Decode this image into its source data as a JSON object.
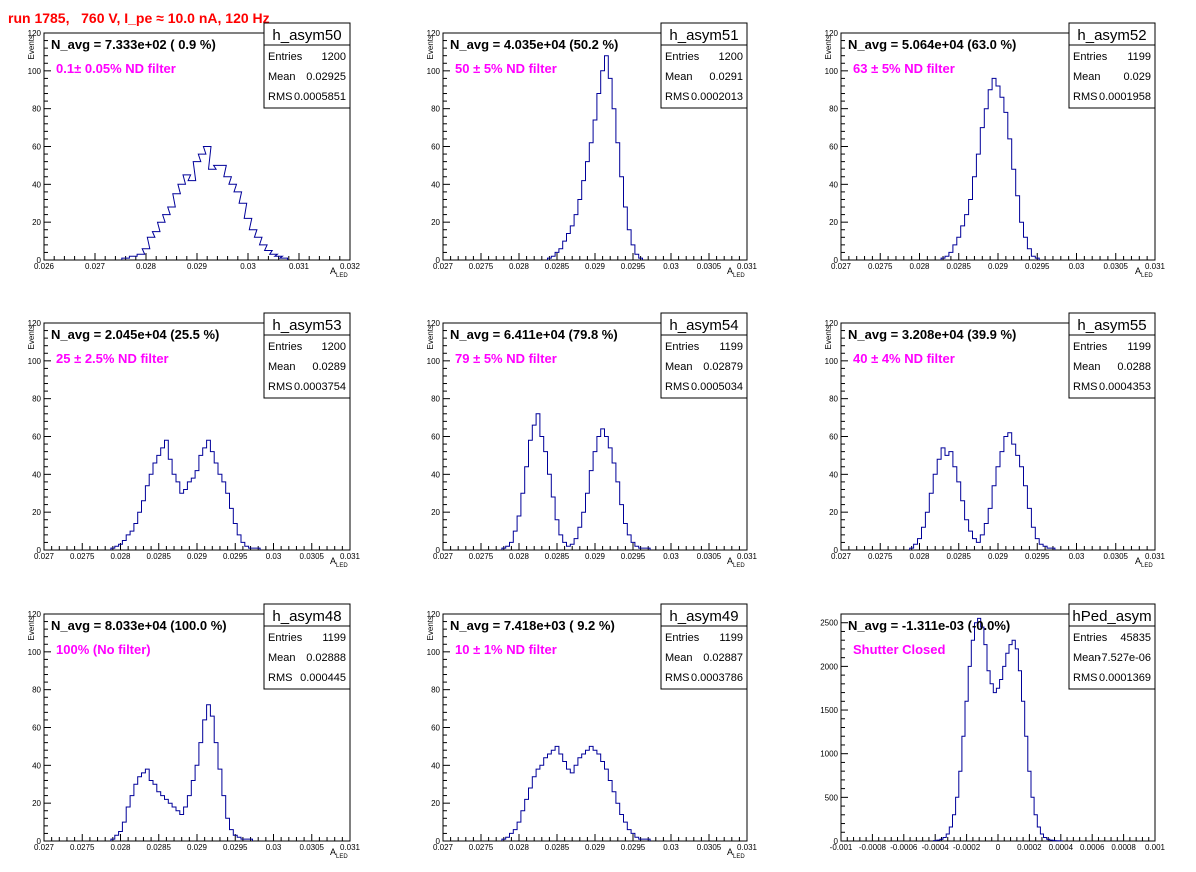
{
  "title": "run 1785,   760 V, I_pe ≈ 10.0 nA, 120 Hz",
  "colors": {
    "title": "#ff0000",
    "filter_label": "#ff00ff",
    "histogram": "#000099"
  },
  "stats_labels": {
    "entries": "Entries",
    "mean": "Mean",
    "rms": "RMS"
  },
  "chart_data": [
    {
      "type": "histogram",
      "name": "h_asym50",
      "navg": "N_avg = 7.333e+02 ( 0.9 %)",
      "filter": "0.1± 0.05% ND filter",
      "entries": "1200",
      "mean": "0.02925",
      "rms": "0.0005851",
      "ylabel": "Events",
      "xlabel": "A",
      "xlabel_sub": "LED",
      "xlim": [
        0.026,
        0.032
      ],
      "ylim": [
        0,
        120
      ],
      "xticks": [
        "0.026",
        "0.027",
        "0.028",
        "0.029",
        "0.03",
        "0.031",
        "0.032"
      ],
      "yticks": [
        "0",
        "20",
        "40",
        "60",
        "80",
        "100",
        "120"
      ],
      "x": [
        0.0276,
        0.02775,
        0.0279,
        0.028,
        0.0281,
        0.0282,
        0.0283,
        0.0284,
        0.0285,
        0.0286,
        0.0287,
        0.0288,
        0.0289,
        0.029,
        0.0291,
        0.0292,
        0.0293,
        0.0294,
        0.0295,
        0.0296,
        0.0297,
        0.0298,
        0.0299,
        0.03,
        0.0301,
        0.0302,
        0.0303,
        0.0304,
        0.0305,
        0.0306,
        0.0307
      ],
      "values": [
        1,
        2,
        3,
        6,
        12,
        15,
        20,
        24,
        28,
        35,
        40,
        45,
        42,
        52,
        56,
        60,
        48,
        50,
        50,
        44,
        40,
        36,
        30,
        22,
        16,
        12,
        8,
        5,
        3,
        2,
        1
      ]
    },
    {
      "type": "histogram",
      "name": "h_asym51",
      "navg": "N_avg = 4.035e+04 (50.2 %)",
      "filter": "50 ± 5% ND filter",
      "entries": "1200",
      "mean": "0.0291",
      "rms": "0.0002013",
      "ylabel": "Events",
      "xlabel": "A",
      "xlabel_sub": "LED",
      "xlim": [
        0.027,
        0.031
      ],
      "ylim": [
        0,
        120
      ],
      "xticks": [
        "0.027",
        "0.0275",
        "0.028",
        "0.0285",
        "0.029",
        "0.0295",
        "0.03",
        "0.0305",
        "0.031"
      ],
      "yticks": [
        "0",
        "20",
        "40",
        "60",
        "80",
        "100",
        "120"
      ],
      "x": [
        0.0284,
        0.02845,
        0.0285,
        0.02855,
        0.0286,
        0.02865,
        0.0287,
        0.02875,
        0.0288,
        0.02885,
        0.0289,
        0.02895,
        0.029,
        0.02905,
        0.0291,
        0.02915,
        0.0292,
        0.02925,
        0.0293,
        0.02935,
        0.0294,
        0.02945,
        0.0295,
        0.02955,
        0.0296
      ],
      "values": [
        1,
        2,
        4,
        6,
        10,
        14,
        18,
        24,
        32,
        42,
        52,
        62,
        74,
        88,
        100,
        108,
        96,
        80,
        62,
        44,
        28,
        16,
        8,
        3,
        1
      ]
    },
    {
      "type": "histogram",
      "name": "h_asym52",
      "navg": "N_avg = 5.064e+04 (63.0 %)",
      "filter": "63 ± 5% ND filter",
      "entries": "1199",
      "mean": "0.029",
      "rms": "0.0001958",
      "ylabel": "Events",
      "xlabel": "A",
      "xlabel_sub": "LED",
      "xlim": [
        0.027,
        0.031
      ],
      "ylim": [
        0,
        120
      ],
      "xticks": [
        "0.027",
        "0.0275",
        "0.028",
        "0.0285",
        "0.029",
        "0.0295",
        "0.03",
        "0.0305",
        "0.031"
      ],
      "yticks": [
        "0",
        "20",
        "40",
        "60",
        "80",
        "100",
        "120"
      ],
      "x": [
        0.0283,
        0.02835,
        0.0284,
        0.02845,
        0.0285,
        0.02855,
        0.0286,
        0.02865,
        0.0287,
        0.02875,
        0.0288,
        0.02885,
        0.0289,
        0.02895,
        0.029,
        0.02905,
        0.0291,
        0.02915,
        0.0292,
        0.02925,
        0.0293,
        0.02935,
        0.0294,
        0.02945,
        0.0295
      ],
      "values": [
        1,
        2,
        4,
        8,
        12,
        18,
        24,
        32,
        44,
        56,
        70,
        80,
        90,
        96,
        92,
        86,
        78,
        64,
        48,
        34,
        20,
        12,
        6,
        2,
        1
      ]
    },
    {
      "type": "histogram",
      "name": "h_asym53",
      "navg": "N_avg = 2.045e+04 (25.5 %)",
      "filter": "25 ± 2.5% ND filter",
      "entries": "1200",
      "mean": "0.0289",
      "rms": "0.0003754",
      "ylabel": "Events",
      "xlabel": "A",
      "xlabel_sub": "LED",
      "xlim": [
        0.027,
        0.031
      ],
      "ylim": [
        0,
        120
      ],
      "xticks": [
        "0.027",
        "0.0275",
        "0.028",
        "0.0285",
        "0.029",
        "0.0295",
        "0.03",
        "0.0305",
        "0.031"
      ],
      "yticks": [
        "0",
        "20",
        "40",
        "60",
        "80",
        "100",
        "120"
      ],
      "x": [
        0.0279,
        0.02795,
        0.028,
        0.02805,
        0.0281,
        0.02815,
        0.0282,
        0.02825,
        0.0283,
        0.02835,
        0.0284,
        0.02845,
        0.0285,
        0.02855,
        0.0286,
        0.02865,
        0.0287,
        0.02875,
        0.0288,
        0.02885,
        0.0289,
        0.02895,
        0.029,
        0.02905,
        0.0291,
        0.02915,
        0.0292,
        0.02925,
        0.0293,
        0.02935,
        0.0294,
        0.02945,
        0.0295,
        0.02955,
        0.0296,
        0.02965,
        0.0297,
        0.02975,
        0.0298
      ],
      "values": [
        1,
        2,
        3,
        5,
        8,
        10,
        14,
        20,
        26,
        34,
        40,
        46,
        50,
        54,
        58,
        48,
        40,
        36,
        30,
        32,
        36,
        38,
        42,
        50,
        54,
        58,
        52,
        46,
        40,
        36,
        30,
        22,
        14,
        8,
        4,
        2,
        1,
        1,
        1
      ]
    },
    {
      "type": "histogram",
      "name": "h_asym54",
      "navg": "N_avg = 6.411e+04 (79.8 %)",
      "filter": "79 ± 5% ND filter",
      "entries": "1199",
      "mean": "0.02879",
      "rms": "0.0005034",
      "ylabel": "Events",
      "xlabel": "A",
      "xlabel_sub": "LED",
      "xlim": [
        0.027,
        0.031
      ],
      "ylim": [
        0,
        120
      ],
      "xticks": [
        "0.027",
        "0.0275",
        "0.028",
        "0.0285",
        "0.029",
        "0.0295",
        "0.03",
        "0.0305",
        "0.031"
      ],
      "yticks": [
        "0",
        "20",
        "40",
        "60",
        "80",
        "100",
        "120"
      ],
      "x": [
        0.0278,
        0.02785,
        0.0279,
        0.02795,
        0.028,
        0.02805,
        0.0281,
        0.02815,
        0.0282,
        0.02825,
        0.0283,
        0.02835,
        0.0284,
        0.02845,
        0.0285,
        0.02855,
        0.0286,
        0.02865,
        0.0287,
        0.02875,
        0.0288,
        0.02885,
        0.0289,
        0.02895,
        0.029,
        0.02905,
        0.0291,
        0.02915,
        0.0292,
        0.02925,
        0.0293,
        0.02935,
        0.0294,
        0.02945,
        0.0295,
        0.02955,
        0.0296,
        0.02965,
        0.0297
      ],
      "values": [
        1,
        2,
        4,
        10,
        18,
        30,
        44,
        58,
        66,
        72,
        60,
        52,
        40,
        28,
        16,
        8,
        4,
        2,
        3,
        6,
        12,
        20,
        30,
        42,
        52,
        60,
        64,
        60,
        54,
        46,
        36,
        24,
        14,
        8,
        4,
        2,
        1,
        1,
        1
      ]
    },
    {
      "type": "histogram",
      "name": "h_asym55",
      "navg": "N_avg = 3.208e+04 (39.9 %)",
      "filter": "40 ± 4% ND filter",
      "entries": "1199",
      "mean": "0.0288",
      "rms": "0.0004353",
      "ylabel": "Events",
      "xlabel": "A",
      "xlabel_sub": "LED",
      "xlim": [
        0.027,
        0.031
      ],
      "ylim": [
        0,
        120
      ],
      "xticks": [
        "0.027",
        "0.0275",
        "0.028",
        "0.0285",
        "0.029",
        "0.0295",
        "0.03",
        "0.0305",
        "0.031"
      ],
      "yticks": [
        "0",
        "20",
        "40",
        "60",
        "80",
        "100",
        "120"
      ],
      "x": [
        0.0279,
        0.02795,
        0.028,
        0.02805,
        0.0281,
        0.02815,
        0.0282,
        0.02825,
        0.0283,
        0.02835,
        0.0284,
        0.02845,
        0.0285,
        0.02855,
        0.0286,
        0.02865,
        0.0287,
        0.02875,
        0.0288,
        0.02885,
        0.0289,
        0.02895,
        0.029,
        0.02905,
        0.0291,
        0.02915,
        0.0292,
        0.02925,
        0.0293,
        0.02935,
        0.0294,
        0.02945,
        0.0295,
        0.02955,
        0.0296,
        0.02965,
        0.0297
      ],
      "values": [
        1,
        3,
        6,
        12,
        20,
        30,
        40,
        48,
        54,
        50,
        52,
        44,
        36,
        26,
        16,
        10,
        6,
        4,
        8,
        14,
        22,
        34,
        44,
        52,
        60,
        62,
        56,
        50,
        44,
        34,
        22,
        12,
        6,
        3,
        2,
        1,
        1
      ]
    },
    {
      "type": "histogram",
      "name": "h_asym48",
      "navg": "N_avg = 8.033e+04 (100.0 %)",
      "filter": "100% (No filter)",
      "entries": "1199",
      "mean": "0.02888",
      "rms": "0.000445",
      "ylabel": "Events",
      "xlabel": "A",
      "xlabel_sub": "LED",
      "xlim": [
        0.027,
        0.031
      ],
      "ylim": [
        0,
        120
      ],
      "xticks": [
        "0.027",
        "0.0275",
        "0.028",
        "0.0285",
        "0.029",
        "0.0295",
        "0.03",
        "0.0305",
        "0.031"
      ],
      "yticks": [
        "0",
        "20",
        "40",
        "60",
        "80",
        "100",
        "120"
      ],
      "x": [
        0.0279,
        0.02795,
        0.028,
        0.02805,
        0.0281,
        0.02815,
        0.0282,
        0.02825,
        0.0283,
        0.02835,
        0.0284,
        0.02845,
        0.0285,
        0.02855,
        0.0286,
        0.02865,
        0.0287,
        0.02875,
        0.0288,
        0.02885,
        0.0289,
        0.02895,
        0.029,
        0.02905,
        0.0291,
        0.02915,
        0.0292,
        0.02925,
        0.0293,
        0.02935,
        0.0294,
        0.02945,
        0.0295,
        0.02955,
        0.0296,
        0.02965,
        0.0297
      ],
      "values": [
        1,
        3,
        5,
        10,
        18,
        24,
        30,
        34,
        36,
        38,
        32,
        30,
        26,
        24,
        22,
        20,
        18,
        16,
        14,
        18,
        24,
        32,
        40,
        52,
        64,
        72,
        66,
        52,
        38,
        24,
        12,
        6,
        3,
        2,
        1,
        1,
        1
      ]
    },
    {
      "type": "histogram",
      "name": "h_asym49",
      "navg": "N_avg = 7.418e+03 ( 9.2 %)",
      "filter": "10 ± 1% ND filter",
      "entries": "1199",
      "mean": "0.02887",
      "rms": "0.0003786",
      "ylabel": "Events",
      "xlabel": "A",
      "xlabel_sub": "LED",
      "xlim": [
        0.027,
        0.031
      ],
      "ylim": [
        0,
        120
      ],
      "xticks": [
        "0.027",
        "0.0275",
        "0.028",
        "0.0285",
        "0.029",
        "0.0295",
        "0.03",
        "0.0305",
        "0.031"
      ],
      "yticks": [
        "0",
        "20",
        "40",
        "60",
        "80",
        "100",
        "120"
      ],
      "x": [
        0.0278,
        0.02785,
        0.0279,
        0.02795,
        0.028,
        0.02805,
        0.0281,
        0.02815,
        0.0282,
        0.02825,
        0.0283,
        0.02835,
        0.0284,
        0.02845,
        0.0285,
        0.02855,
        0.0286,
        0.02865,
        0.0287,
        0.02875,
        0.0288,
        0.02885,
        0.0289,
        0.02895,
        0.029,
        0.02905,
        0.0291,
        0.02915,
        0.0292,
        0.02925,
        0.0293,
        0.02935,
        0.0294,
        0.02945,
        0.0295,
        0.02955,
        0.0296,
        0.02965,
        0.0297
      ],
      "values": [
        1,
        2,
        4,
        6,
        10,
        16,
        22,
        28,
        34,
        38,
        40,
        44,
        46,
        48,
        50,
        46,
        42,
        38,
        36,
        40,
        44,
        46,
        48,
        50,
        48,
        46,
        42,
        38,
        32,
        26,
        20,
        14,
        10,
        6,
        4,
        2,
        1,
        1,
        1
      ]
    },
    {
      "type": "histogram",
      "name": "hPed_asym",
      "navg": "N_avg = -1.311e-03 (-0.0%)",
      "filter": "Shutter Closed",
      "entries": "45835",
      "mean": "-7.527e-06",
      "rms": "0.0001369",
      "ylabel": "",
      "xlabel": "",
      "xlabel_sub": "",
      "xlim": [
        -0.001,
        0.001
      ],
      "ylim": [
        0,
        2600
      ],
      "xticks": [
        "-0.001",
        "-0.0008",
        "-0.0006",
        "-0.0004",
        "-0.0002",
        "0",
        "0.0002",
        "0.0004",
        "0.0006",
        "0.0008",
        "0.001"
      ],
      "yticks": [
        "0",
        "500",
        "1000",
        "1500",
        "2000",
        "2500"
      ],
      "x": [
        -0.0004,
        -0.00038,
        -0.00036,
        -0.00034,
        -0.00032,
        -0.0003,
        -0.00028,
        -0.00026,
        -0.00024,
        -0.00022,
        -0.0002,
        -0.00018,
        -0.00016,
        -0.00014,
        -0.00012,
        -0.0001,
        -8e-05,
        -6e-05,
        -4e-05,
        -2e-05,
        0,
        2e-05,
        4e-05,
        6e-05,
        8e-05,
        0.0001,
        0.00012,
        0.00014,
        0.00016,
        0.00018,
        0.0002,
        0.00022,
        0.00024,
        0.00026,
        0.00028,
        0.0003,
        0.00032,
        0.00034,
        0.00036,
        0.00038,
        0.0004
      ],
      "values": [
        5,
        10,
        20,
        40,
        80,
        160,
        300,
        500,
        800,
        1200,
        1600,
        2000,
        2300,
        2500,
        2550,
        2450,
        2250,
        1950,
        1800,
        1700,
        1750,
        1850,
        2000,
        2150,
        2250,
        2300,
        2200,
        1950,
        1600,
        1200,
        800,
        500,
        300,
        160,
        80,
        40,
        20,
        10,
        5,
        2,
        1
      ]
    }
  ]
}
